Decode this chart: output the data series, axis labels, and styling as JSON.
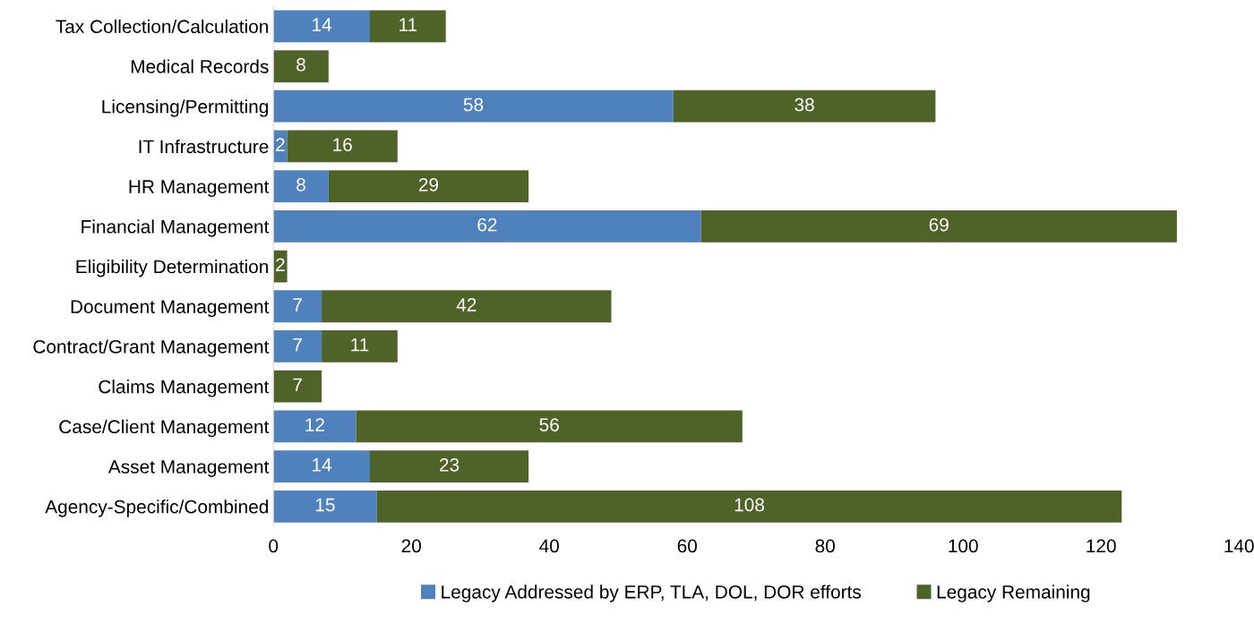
{
  "chart_data": {
    "type": "bar",
    "orientation": "horizontal",
    "stacked": true,
    "categories": [
      "Tax Collection/Calculation",
      "Medical Records",
      "Licensing/Permitting",
      "IT Infrastructure",
      "HR Management",
      "Financial Management",
      "Eligibility Determination",
      "Document Management",
      "Contract/Grant Management",
      "Claims Management",
      "Case/Client Management",
      "Asset Management",
      "Agency-Specific/Combined"
    ],
    "series": [
      {
        "name": "Legacy Addressed by ERP, TLA, DOL, DOR efforts",
        "color": "#4f81bd",
        "values": [
          14,
          0,
          58,
          2,
          8,
          62,
          0,
          7,
          7,
          0,
          12,
          14,
          15
        ],
        "value_labels": [
          "14",
          null,
          "58",
          "2",
          "8",
          "62",
          null,
          "7",
          "7",
          null,
          "12",
          "14",
          "15"
        ]
      },
      {
        "name": "Legacy Remaining",
        "color": "#4f6228",
        "values": [
          11,
          8,
          38,
          16,
          29,
          69,
          2,
          42,
          11,
          7,
          56,
          23,
          108
        ],
        "value_labels": [
          "11",
          "8",
          "38",
          "16",
          "29",
          "69",
          "2",
          "42",
          "11",
          "7",
          "56",
          "23",
          "108"
        ]
      }
    ],
    "xlim": [
      0,
      140
    ],
    "xticks": [
      0,
      20,
      40,
      60,
      80,
      100,
      120,
      140
    ],
    "grid": false,
    "legend": "bottom"
  }
}
